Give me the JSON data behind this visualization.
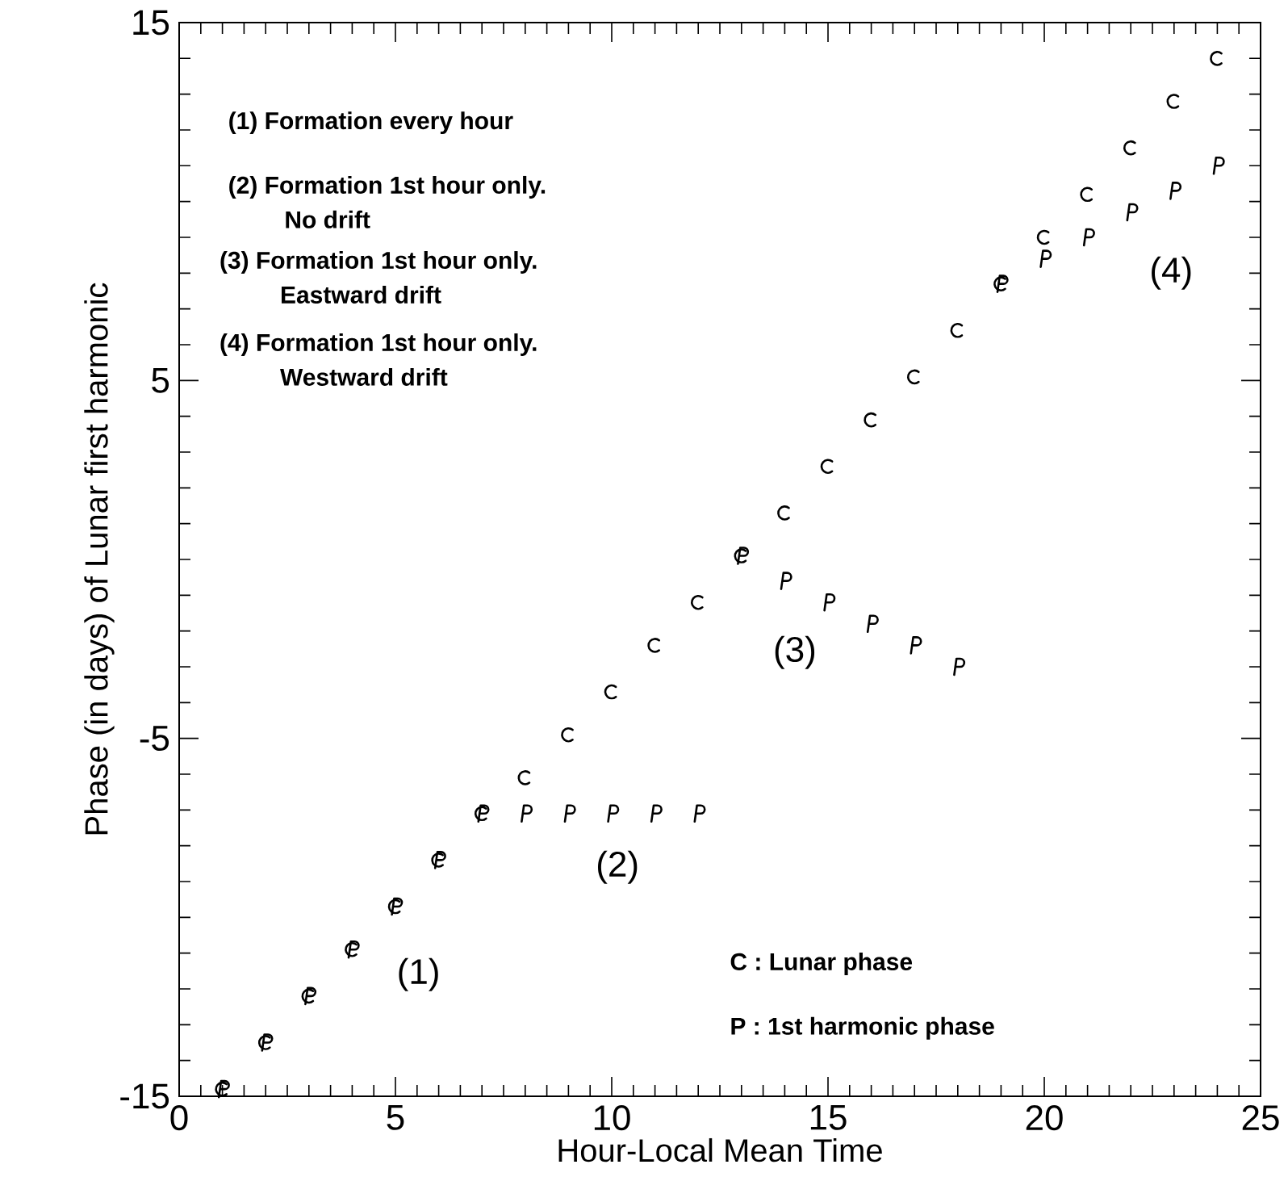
{
  "chart_data": {
    "type": "scatter",
    "xlabel": "Hour-Local Mean Time",
    "ylabel": "Phase (in days) of Lunar first harmonic",
    "x": [
      1,
      2,
      3,
      4,
      5,
      6,
      7,
      8,
      9,
      10,
      11,
      12,
      13,
      14,
      15,
      16,
      17,
      18,
      19,
      20,
      21,
      22,
      23,
      24
    ],
    "series": [
      {
        "color": "#000000",
        "values": [
          -14.8,
          -13.5,
          -12.2,
          -10.9,
          -9.7,
          -8.4,
          -7.1,
          -6.1,
          -4.9,
          -3.7,
          -2.4,
          -1.2,
          0.1,
          1.3,
          2.6,
          3.9,
          5.1,
          6.4,
          7.7,
          9.0,
          10.2,
          11.5,
          12.8,
          14.0
        ]
      },
      {
        "color": "#000000",
        "values": [
          -14.8,
          -13.5,
          -12.2,
          -10.9,
          -9.7,
          -8.4,
          -7.1,
          -7.1,
          -7.1,
          -7.1,
          -7.1,
          -7.1,
          0.1,
          -0.6,
          -1.2,
          -1.8,
          -2.4,
          -3.0,
          7.7,
          8.4,
          9.0,
          9.7,
          10.3,
          11.0
        ]
      }
    ],
    "xlim": [
      0,
      25
    ],
    "ylim": [
      -15,
      15
    ],
    "xticks": [
      0,
      5,
      10,
      15,
      20,
      25
    ],
    "yticks": [
      -15,
      -5,
      5,
      15
    ],
    "annotations": [
      "(1) Formation every hour",
      "(2) Formation 1st hour only.",
      "No drift",
      "(3) Formation 1st hour only.",
      "Eastward drift",
      "(4) Formation 1st hour only.",
      "Westward drift",
      "C : Lunar phase",
      "P : 1st harmonic phase",
      "(1)",
      "(2)",
      "(3)",
      "(4)"
    ]
  }
}
